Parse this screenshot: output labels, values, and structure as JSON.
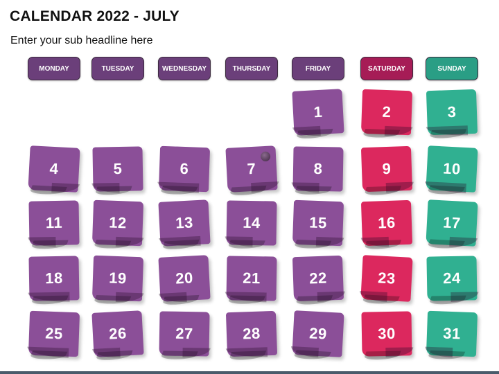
{
  "title": "CALENDAR 2022 - JULY",
  "subtitle": "Enter your sub headline here",
  "colors": {
    "weekday": "#6b3f7a",
    "saturday": "#a61c56",
    "sunday": "#2a9e85",
    "note_weekday": "#8b4f98",
    "note_saturday": "#dc285e",
    "note_sunday": "#30b091"
  },
  "days_header": [
    {
      "label": "MONDAY",
      "type": "weekday"
    },
    {
      "label": "TUESDAY",
      "type": "weekday"
    },
    {
      "label": "WEDNESDAY",
      "type": "weekday"
    },
    {
      "label": "THURSDAY",
      "type": "weekday"
    },
    {
      "label": "FRIDAY",
      "type": "weekday"
    },
    {
      "label": "SATURDAY",
      "type": "saturday"
    },
    {
      "label": "SUNDAY",
      "type": "sunday"
    }
  ],
  "dates": [
    [
      null,
      null,
      null,
      null,
      "1",
      "2",
      "3"
    ],
    [
      "4",
      "5",
      "6",
      "7",
      "8",
      "9",
      "10"
    ],
    [
      "11",
      "12",
      "13",
      "14",
      "15",
      "16",
      "17"
    ],
    [
      "18",
      "19",
      "20",
      "21",
      "22",
      "23",
      "24"
    ],
    [
      "25",
      "26",
      "27",
      "28",
      "29",
      "30",
      "31"
    ]
  ],
  "pin_icon": "pushpin-icon"
}
